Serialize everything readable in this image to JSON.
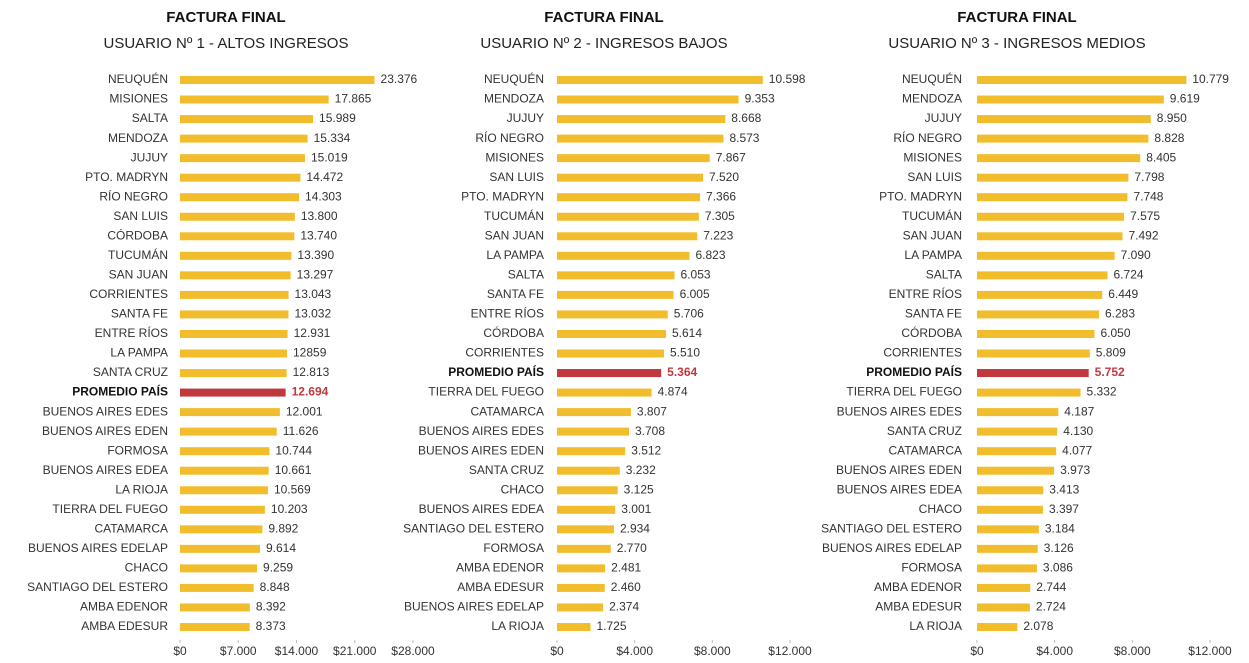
{
  "chart_data": [
    {
      "type": "bar",
      "orientation": "horizontal",
      "title": "FACTURA FINAL",
      "subtitle": "USUARIO Nº 1 - ALTOS INGRESOS",
      "categories": [
        "NEUQUÉN",
        "MISIONES",
        "SALTA",
        "MENDOZA",
        "JUJUY",
        "PTO. MADRYN",
        "RÍO NEGRO",
        "SAN LUIS",
        "CÓRDOBA",
        "TUCUMÁN",
        "SAN JUAN",
        "CORRIENTES",
        "SANTA FE",
        "ENTRE RÍOS",
        "LA PAMPA",
        "SANTA CRUZ",
        "PROMEDIO PAÍS",
        "BUENOS AIRES EDES",
        "BUENOS AIRES EDEN",
        "FORMOSA",
        "BUENOS AIRES EDEA",
        "LA RIOJA",
        "TIERRA DEL FUEGO",
        "CATAMARCA",
        "BUENOS AIRES EDELAP",
        "CHACO",
        "SANTIAGO DEL ESTERO",
        "AMBA EDENOR",
        "AMBA EDESUR"
      ],
      "values": [
        23376,
        17865,
        15989,
        15334,
        15019,
        14472,
        14303,
        13800,
        13740,
        13390,
        13297,
        13043,
        13032,
        12931,
        12859,
        12813,
        12694,
        12001,
        11626,
        10744,
        10661,
        10569,
        10203,
        9892,
        9614,
        9259,
        8848,
        8392,
        8373
      ],
      "value_labels": [
        "23.376",
        "17.865",
        "15.989",
        "15.334",
        "15.019",
        "14.472",
        "14.303",
        "13.800",
        "13.740",
        "13.390",
        "13.297",
        "13.043",
        "13.032",
        "12.931",
        "12859",
        "12.813",
        "12.694",
        "12.001",
        "11.626",
        "10.744",
        "10.661",
        "10.569",
        "10.203",
        "9.892",
        "9.614",
        "9.259",
        "8.848",
        "8.392",
        "8.373"
      ],
      "colors": [
        "#f2bd2c",
        "#f2bd2c",
        "#f2bd2c",
        "#f2bd2c",
        "#f2bd2c",
        "#f2bd2c",
        "#f2bd2c",
        "#f2bd2c",
        "#f2bd2c",
        "#f2bd2c",
        "#f2bd2c",
        "#f2bd2c",
        "#f2bd2c",
        "#f2bd2c",
        "#f2bd2c",
        "#f2bd2c",
        "#c2383f",
        "#f2bd2c",
        "#f2bd2c",
        "#f2bd2c",
        "#f2bd2c",
        "#f2bd2c",
        "#f2bd2c",
        "#f2bd2c",
        "#f2bd2c",
        "#f2bd2c",
        "#f2bd2c",
        "#f2bd2c",
        "#f2bd2c"
      ],
      "xlim": [
        0,
        28000
      ],
      "xticks": [
        {
          "value": 0,
          "label": "$0"
        },
        {
          "value": 7000,
          "label": "$7.000"
        },
        {
          "value": 14000,
          "label": "$14.000"
        },
        {
          "value": 21000,
          "label": "$21.000"
        },
        {
          "value": 28000,
          "label": "$28.000"
        }
      ]
    },
    {
      "type": "bar",
      "orientation": "horizontal",
      "title": "FACTURA FINAL",
      "subtitle": "USUARIO Nº 2 - INGRESOS BAJOS",
      "categories": [
        "NEUQUÉN",
        "MENDOZA",
        "JUJUY",
        "RÍO NEGRO",
        "MISIONES",
        "SAN LUIS",
        "PTO. MADRYN",
        "TUCUMÁN",
        "SAN JUAN",
        "LA PAMPA",
        "SALTA",
        "SANTA FE",
        "ENTRE RÍOS",
        "CÓRDOBA",
        "CORRIENTES",
        "PROMEDIO PAÍS",
        "TIERRA DEL FUEGO",
        "CATAMARCA",
        "BUENOS AIRES EDES",
        "BUENOS AIRES EDEN",
        "SANTA CRUZ",
        "CHACO",
        "BUENOS AIRES EDEA",
        "SANTIAGO DEL ESTERO",
        "FORMOSA",
        "AMBA EDENOR",
        "AMBA EDESUR",
        "BUENOS AIRES EDELAP",
        "LA RIOJA"
      ],
      "values": [
        10598,
        9353,
        8668,
        8573,
        7867,
        7520,
        7366,
        7305,
        7223,
        6823,
        6053,
        6005,
        5706,
        5614,
        5510,
        5364,
        4874,
        3807,
        3708,
        3512,
        3232,
        3125,
        3001,
        2934,
        2770,
        2481,
        2460,
        2374,
        1725
      ],
      "value_labels": [
        "10.598",
        "9.353",
        "8.668",
        "8.573",
        "7.867",
        "7.520",
        "7.366",
        "7.305",
        "7.223",
        "6.823",
        "6.053",
        "6.005",
        "5.706",
        "5.614",
        "5.510",
        "5.364",
        "4.874",
        "3.807",
        "3.708",
        "3.512",
        "3.232",
        "3.125",
        "3.001",
        "2.934",
        "2.770",
        "2.481",
        "2.460",
        "2.374",
        "1.725"
      ],
      "colors": [
        "#f2bd2c",
        "#f2bd2c",
        "#f2bd2c",
        "#f2bd2c",
        "#f2bd2c",
        "#f2bd2c",
        "#f2bd2c",
        "#f2bd2c",
        "#f2bd2c",
        "#f2bd2c",
        "#f2bd2c",
        "#f2bd2c",
        "#f2bd2c",
        "#f2bd2c",
        "#f2bd2c",
        "#c2383f",
        "#f2bd2c",
        "#f2bd2c",
        "#f2bd2c",
        "#f2bd2c",
        "#f2bd2c",
        "#f2bd2c",
        "#f2bd2c",
        "#f2bd2c",
        "#f2bd2c",
        "#f2bd2c",
        "#f2bd2c",
        "#f2bd2c",
        "#f2bd2c"
      ],
      "xlim": [
        0,
        12000
      ],
      "xticks": [
        {
          "value": 0,
          "label": "$0"
        },
        {
          "value": 4000,
          "label": "$4.000"
        },
        {
          "value": 8000,
          "label": "$8.000"
        },
        {
          "value": 12000,
          "label": "$12.000"
        }
      ]
    },
    {
      "type": "bar",
      "orientation": "horizontal",
      "title": "FACTURA FINAL",
      "subtitle": "USUARIO Nº 3 - INGRESOS MEDIOS",
      "categories": [
        "NEUQUÉN",
        "MENDOZA",
        "JUJUY",
        "RÍO NEGRO",
        "MISIONES",
        "SAN LUIS",
        "PTO. MADRYN",
        "TUCUMÁN",
        "SAN JUAN",
        "LA PAMPA",
        "SALTA",
        "ENTRE RÍOS",
        "SANTA FE",
        "CÓRDOBA",
        "CORRIENTES",
        "PROMEDIO PAÍS",
        "TIERRA DEL FUEGO",
        "BUENOS AIRES EDES",
        "SANTA CRUZ",
        "CATAMARCA",
        "BUENOS AIRES EDEN",
        "BUENOS AIRES EDEA",
        "CHACO",
        "SANTIAGO DEL ESTERO",
        "BUENOS AIRES EDELAP",
        "FORMOSA",
        "AMBA EDENOR",
        "AMBA EDESUR",
        "LA RIOJA"
      ],
      "values": [
        10779,
        9619,
        8950,
        8828,
        8405,
        7798,
        7748,
        7575,
        7492,
        7090,
        6724,
        6449,
        6283,
        6050,
        5809,
        5752,
        5332,
        4187,
        4130,
        4077,
        3973,
        3413,
        3397,
        3184,
        3126,
        3086,
        2744,
        2724,
        2078
      ],
      "value_labels": [
        "10.779",
        "9.619",
        "8.950",
        "8.828",
        "8.405",
        "7.798",
        "7.748",
        "7.575",
        "7.492",
        "7.090",
        "6.724",
        "6.449",
        "6.283",
        "6.050",
        "5.809",
        "5.752",
        "5.332",
        "4.187",
        "4.130",
        "4.077",
        "3.973",
        "3.413",
        "3.397",
        "3.184",
        "3.126",
        "3.086",
        "2.744",
        "2.724",
        "2.078"
      ],
      "colors": [
        "#f2bd2c",
        "#f2bd2c",
        "#f2bd2c",
        "#f2bd2c",
        "#f2bd2c",
        "#f2bd2c",
        "#f2bd2c",
        "#f2bd2c",
        "#f2bd2c",
        "#f2bd2c",
        "#f2bd2c",
        "#f2bd2c",
        "#f2bd2c",
        "#f2bd2c",
        "#f2bd2c",
        "#c2383f",
        "#f2bd2c",
        "#f2bd2c",
        "#f2bd2c",
        "#f2bd2c",
        "#f2bd2c",
        "#f2bd2c",
        "#f2bd2c",
        "#f2bd2c",
        "#f2bd2c",
        "#f2bd2c",
        "#f2bd2c",
        "#f2bd2c",
        "#f2bd2c"
      ],
      "xlim": [
        0,
        12000
      ],
      "xticks": [
        {
          "value": 0,
          "label": "$0"
        },
        {
          "value": 4000,
          "label": "$4.000"
        },
        {
          "value": 8000,
          "label": "$8.000"
        },
        {
          "value": 12000,
          "label": "$12.000"
        }
      ]
    }
  ]
}
